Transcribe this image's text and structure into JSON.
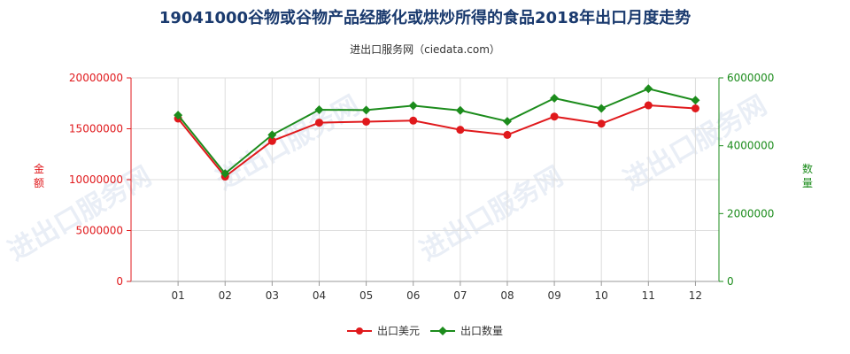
{
  "title": "19041000谷物或谷物产品经膨化或烘炒所得的食品2018年出口月度走势",
  "subtitle": "进出口服务网（ciedata.com）",
  "watermark": "进出口服务网",
  "chart_data": {
    "type": "line",
    "categories": [
      "01",
      "02",
      "03",
      "04",
      "05",
      "06",
      "07",
      "08",
      "09",
      "10",
      "11",
      "12"
    ],
    "y_left": {
      "label": "金额",
      "min": 0,
      "max": 20000000,
      "ticks": [
        "0",
        "5000000",
        "10000000",
        "15000000",
        "20000000"
      ],
      "color": "#e0191c"
    },
    "y_right": {
      "label": "数量",
      "min": 0,
      "max": 6000000,
      "ticks": [
        "0",
        "2000000",
        "4000000",
        "6000000"
      ],
      "color": "#1c8c1c"
    },
    "series": [
      {
        "name": "出口美元",
        "axis": "left",
        "color": "#e0191c",
        "values": [
          16000000,
          10300000,
          13800000,
          15600000,
          15700000,
          15800000,
          14900000,
          14400000,
          16200000,
          15500000,
          17300000,
          17000000
        ]
      },
      {
        "name": "出口数量",
        "axis": "right",
        "color": "#1c8c1c",
        "values": [
          4900000,
          3180000,
          4320000,
          5060000,
          5050000,
          5180000,
          5040000,
          4720000,
          5400000,
          5100000,
          5680000,
          5340000
        ]
      }
    ],
    "grid": true,
    "legend_position": "bottom"
  }
}
